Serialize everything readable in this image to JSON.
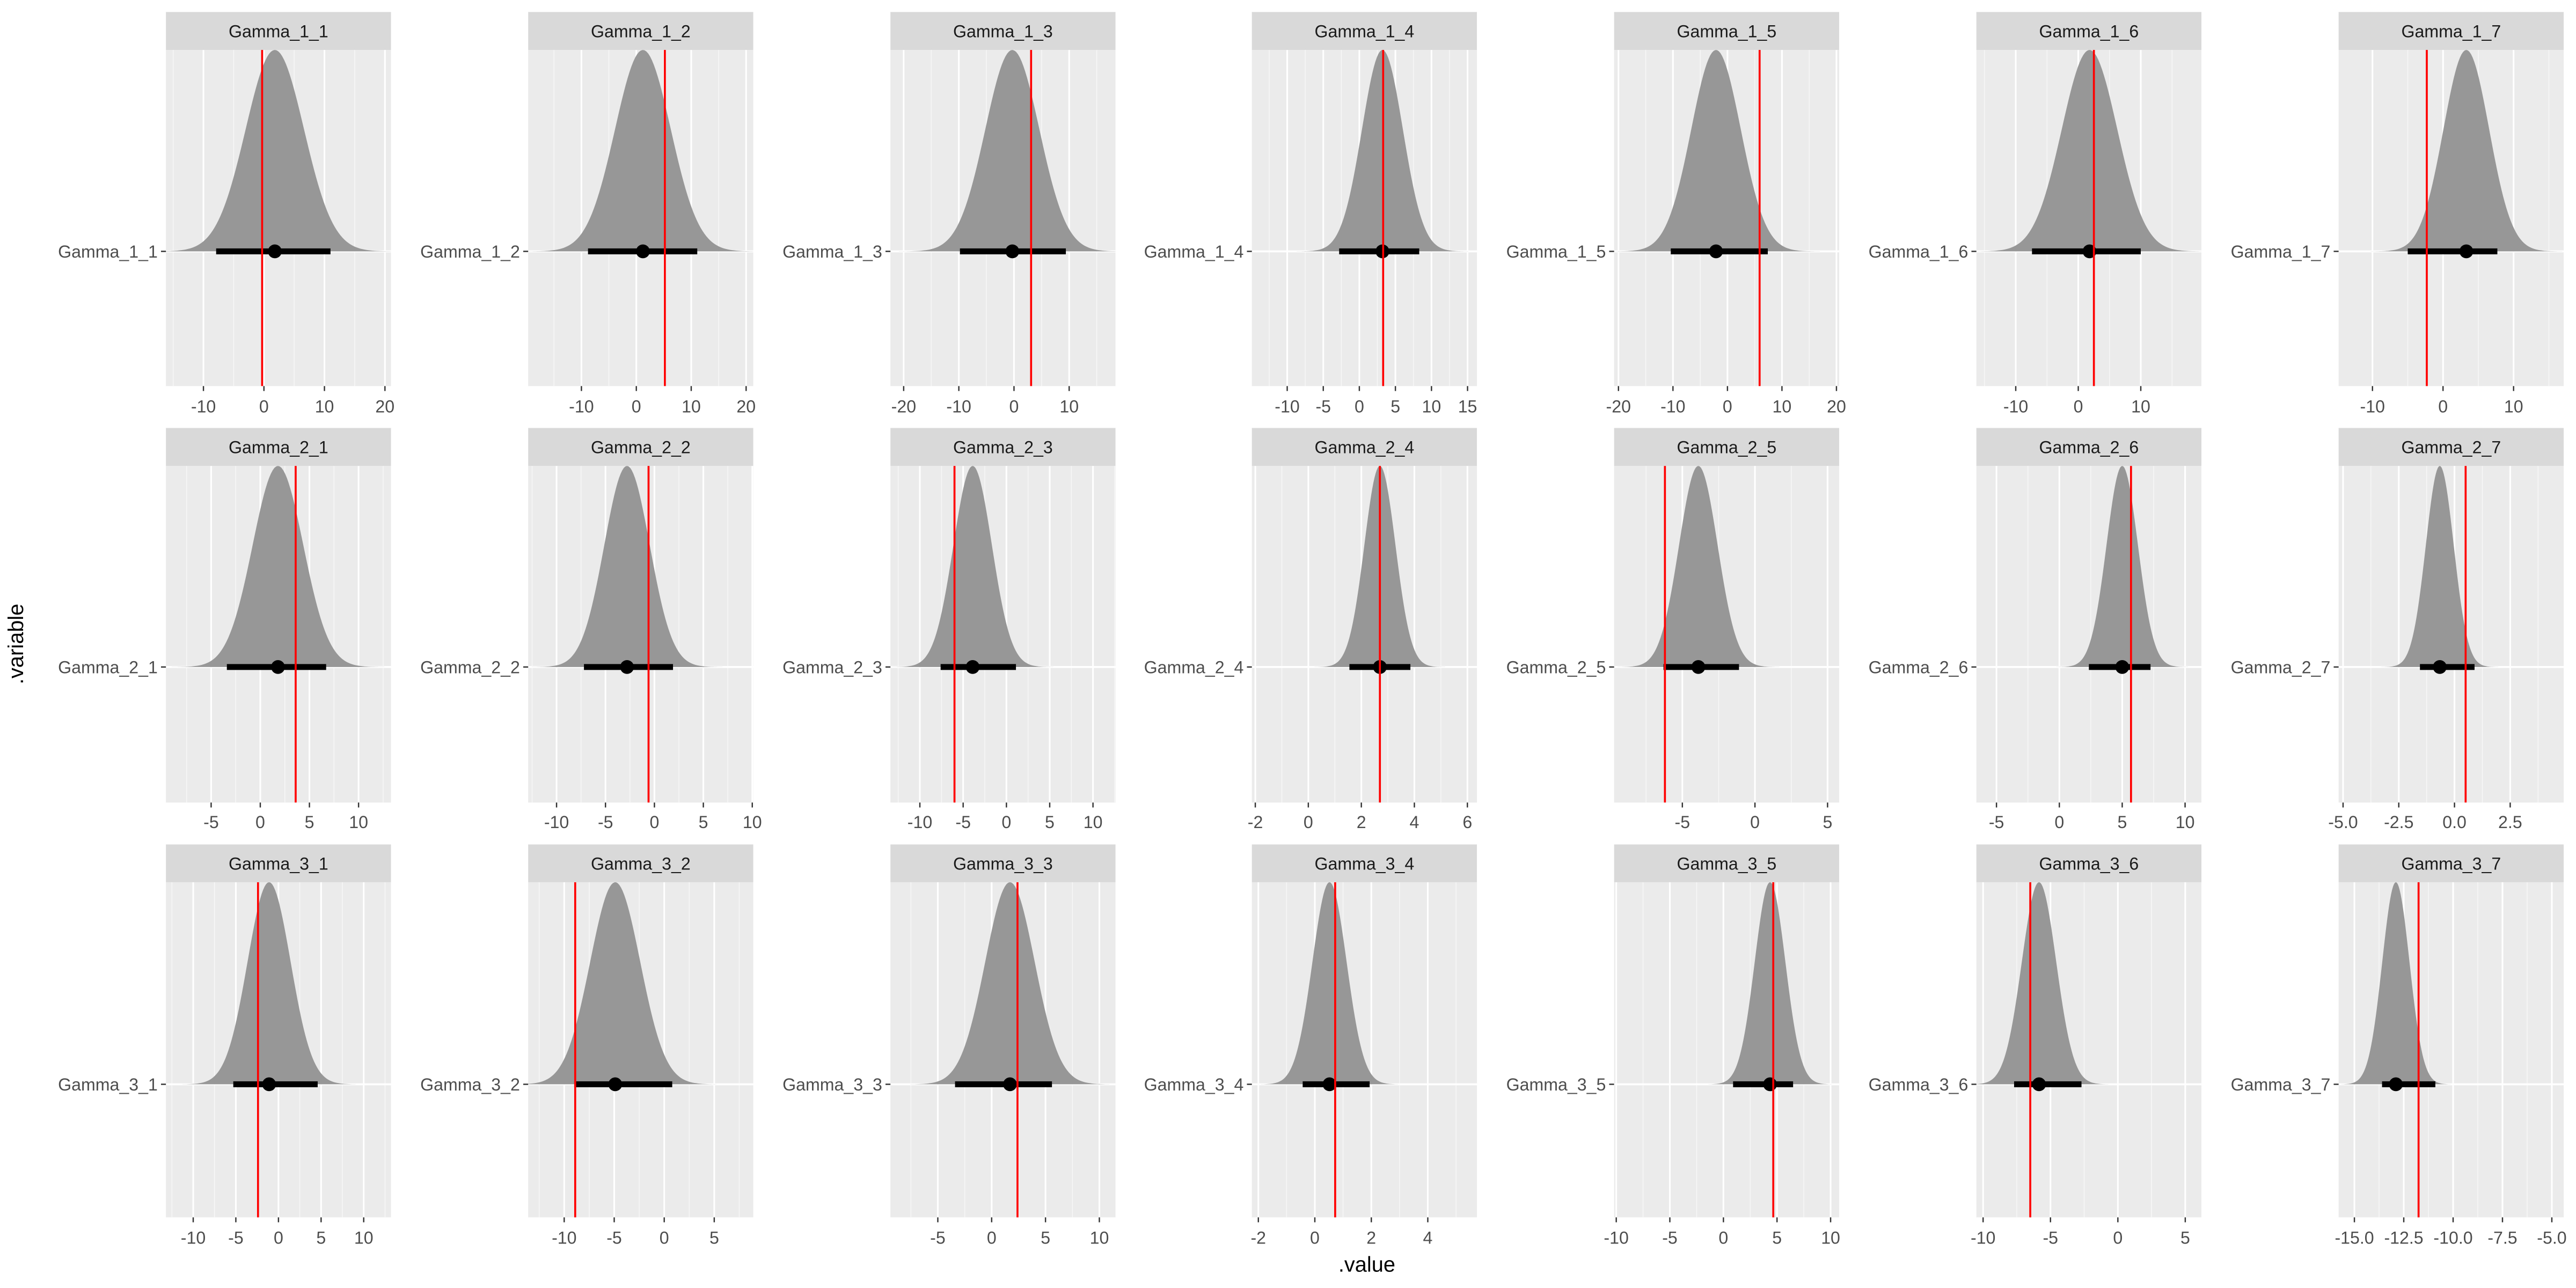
{
  "axes": {
    "xlabel": ".value",
    "ylabel": ".variable"
  },
  "colors": {
    "panel_bg": "#EBEBEB",
    "strip_bg": "#D9D9D9",
    "density": "#979797",
    "grid": "#FFFFFF",
    "truth_line": "#FF0000",
    "interval": "#000000"
  },
  "chart_data": [
    {
      "type": "area",
      "title": "Gamma_1_1",
      "variable": "Gamma_1_1",
      "xlim": [
        -16.2,
        21
      ],
      "xticks": [
        "-10",
        "0",
        "10",
        "20"
      ],
      "xtick_values": [
        -10,
        0,
        10,
        20
      ],
      "median": 1.8,
      "interval": [
        -7.9,
        11
      ],
      "true_value": -0.3
    },
    {
      "type": "area",
      "title": "Gamma_1_2",
      "variable": "Gamma_1_2",
      "xlim": [
        -19.7,
        21.3
      ],
      "xticks": [
        "-10",
        "0",
        "10",
        "20"
      ],
      "xtick_values": [
        -10,
        0,
        10,
        20
      ],
      "median": 1.2,
      "interval": [
        -8.8,
        11.1
      ],
      "true_value": 5.2
    },
    {
      "type": "area",
      "title": "Gamma_1_3",
      "variable": "Gamma_1_3",
      "xlim": [
        -22.4,
        18.4
      ],
      "xticks": [
        "-20",
        "-10",
        "0",
        "10"
      ],
      "xtick_values": [
        -20,
        -10,
        0,
        10
      ],
      "median": -0.3,
      "interval": [
        -9.8,
        9.4
      ],
      "true_value": 3.1
    },
    {
      "type": "area",
      "title": "Gamma_1_4",
      "variable": "Gamma_1_4",
      "xlim": [
        -14.9,
        16.3
      ],
      "xticks": [
        "-10",
        "-5",
        "0",
        "5",
        "10",
        "15"
      ],
      "xtick_values": [
        -10,
        -5,
        0,
        5,
        10,
        15
      ],
      "median": 3.2,
      "interval": [
        -2.8,
        8.3
      ],
      "true_value": 3.3
    },
    {
      "type": "area",
      "title": "Gamma_1_5",
      "variable": "Gamma_1_5",
      "xlim": [
        -20.8,
        20.5
      ],
      "xticks": [
        "-20",
        "-10",
        "0",
        "10",
        "20"
      ],
      "xtick_values": [
        -20,
        -10,
        0,
        10,
        20
      ],
      "median": -2.1,
      "interval": [
        -10.4,
        7.4
      ],
      "true_value": 5.9
    },
    {
      "type": "area",
      "title": "Gamma_1_6",
      "variable": "Gamma_1_6",
      "xlim": [
        -16.3,
        19.7
      ],
      "xticks": [
        "-10",
        "0",
        "10"
      ],
      "xtick_values": [
        -10,
        0,
        10
      ],
      "median": 1.8,
      "interval": [
        -7.4,
        10
      ],
      "true_value": 2.5
    },
    {
      "type": "area",
      "title": "Gamma_1_7",
      "variable": "Gamma_1_7",
      "xlim": [
        -14.8,
        17.1
      ],
      "xticks": [
        "-10",
        "0",
        "10"
      ],
      "xtick_values": [
        -10,
        0,
        10
      ],
      "median": 3.3,
      "interval": [
        -5,
        7.7
      ],
      "true_value": -2.3
    },
    {
      "type": "area",
      "title": "Gamma_2_1",
      "variable": "Gamma_2_1",
      "xlim": [
        -9.6,
        13.3
      ],
      "xticks": [
        "-5",
        "0",
        "5",
        "10"
      ],
      "xtick_values": [
        -5,
        0,
        5,
        10
      ],
      "median": 1.8,
      "interval": [
        -3.4,
        6.7
      ],
      "true_value": 3.6
    },
    {
      "type": "area",
      "title": "Gamma_2_2",
      "variable": "Gamma_2_2",
      "xlim": [
        -12.9,
        10.1
      ],
      "xticks": [
        "-10",
        "-5",
        "0",
        "5",
        "10"
      ],
      "xtick_values": [
        -10,
        -5,
        0,
        5,
        10
      ],
      "median": -2.8,
      "interval": [
        -7.2,
        1.9
      ],
      "true_value": -0.6
    },
    {
      "type": "area",
      "title": "Gamma_2_3",
      "variable": "Gamma_2_3",
      "xlim": [
        -13.4,
        12.6
      ],
      "xticks": [
        "-10",
        "-5",
        "0",
        "5",
        "10"
      ],
      "xtick_values": [
        -10,
        -5,
        0,
        5,
        10
      ],
      "median": -3.9,
      "interval": [
        -7.6,
        1.1
      ],
      "true_value": -6.0
    },
    {
      "type": "area",
      "title": "Gamma_2_4",
      "variable": "Gamma_2_4",
      "xlim": [
        -2.13,
        6.36
      ],
      "xticks": [
        "-2",
        "0",
        "2",
        "4",
        "6"
      ],
      "xtick_values": [
        -2,
        0,
        2,
        4,
        6
      ],
      "median": 2.7,
      "interval": [
        1.55,
        3.85
      ],
      "true_value": 2.7
    },
    {
      "type": "area",
      "title": "Gamma_2_5",
      "variable": "Gamma_2_5",
      "xlim": [
        -9.7,
        5.8
      ],
      "xticks": [
        "-5",
        "0",
        "5"
      ],
      "xtick_values": [
        -5,
        0,
        5
      ],
      "median": -3.9,
      "interval": [
        -6.3,
        -1.1
      ],
      "true_value": -6.2
    },
    {
      "type": "area",
      "title": "Gamma_2_6",
      "variable": "Gamma_2_6",
      "xlim": [
        -6.6,
        11.3
      ],
      "xticks": [
        "-5",
        "0",
        "5",
        "10"
      ],
      "xtick_values": [
        -5,
        0,
        5,
        10
      ],
      "median": 5.0,
      "interval": [
        2.35,
        7.25
      ],
      "true_value": 5.7
    },
    {
      "type": "area",
      "title": "Gamma_2_7",
      "variable": "Gamma_2_7",
      "xlim": [
        -5.2,
        4.9
      ],
      "xticks": [
        "-5.0",
        "-2.5",
        "0.0",
        "2.5"
      ],
      "xtick_values": [
        -5,
        -2.5,
        0,
        2.5
      ],
      "median": -0.66,
      "interval": [
        -1.55,
        0.9
      ],
      "true_value": 0.5
    },
    {
      "type": "area",
      "title": "Gamma_3_1",
      "variable": "Gamma_3_1",
      "xlim": [
        -13.2,
        13.2
      ],
      "xticks": [
        "-10",
        "-5",
        "0",
        "5",
        "10"
      ],
      "xtick_values": [
        -10,
        -5,
        0,
        5,
        10
      ],
      "median": -1.1,
      "interval": [
        -5.3,
        4.6
      ],
      "true_value": -2.4
    },
    {
      "type": "area",
      "title": "Gamma_3_2",
      "variable": "Gamma_3_2",
      "xlim": [
        -13.6,
        8.9
      ],
      "xticks": [
        "-10",
        "-5",
        "0",
        "5"
      ],
      "xtick_values": [
        -10,
        -5,
        0,
        5
      ],
      "median": -4.9,
      "interval": [
        -9.0,
        0.8
      ],
      "true_value": -8.9
    },
    {
      "type": "area",
      "title": "Gamma_3_3",
      "variable": "Gamma_3_3",
      "xlim": [
        -9.4,
        11.5
      ],
      "xticks": [
        "-5",
        "0",
        "5",
        "10"
      ],
      "xtick_values": [
        -5,
        0,
        5,
        10
      ],
      "median": 1.7,
      "interval": [
        -3.4,
        5.6
      ],
      "true_value": 2.4
    },
    {
      "type": "area",
      "title": "Gamma_3_4",
      "variable": "Gamma_3_4",
      "xlim": [
        -2.23,
        5.74
      ],
      "xticks": [
        "-2",
        "0",
        "2",
        "4"
      ],
      "xtick_values": [
        -2,
        0,
        2,
        4
      ],
      "median": 0.52,
      "interval": [
        -0.43,
        1.94
      ],
      "true_value": 0.72
    },
    {
      "type": "area",
      "title": "Gamma_3_5",
      "variable": "Gamma_3_5",
      "xlim": [
        -10.2,
        10.8
      ],
      "xticks": [
        "-10",
        "-5",
        "0",
        "5",
        "10"
      ],
      "xtick_values": [
        -10,
        -5,
        0,
        5,
        10
      ],
      "median": 4.35,
      "interval": [
        0.9,
        6.5
      ],
      "true_value": 4.65
    },
    {
      "type": "area",
      "title": "Gamma_3_6",
      "variable": "Gamma_3_6",
      "xlim": [
        -10.5,
        6.2
      ],
      "xticks": [
        "-10",
        "-5",
        "0",
        "5"
      ],
      "xtick_values": [
        -10,
        -5,
        0,
        5
      ],
      "median": -5.85,
      "interval": [
        -7.7,
        -2.7
      ],
      "true_value": -6.5
    },
    {
      "type": "area",
      "title": "Gamma_3_7",
      "variable": "Gamma_3_7",
      "xlim": [
        -15.8,
        -4.4
      ],
      "xticks": [
        "-15.0",
        "-12.5",
        "-10.0",
        "-7.5",
        "-5.0"
      ],
      "xtick_values": [
        -15,
        -12.5,
        -10,
        -7.5,
        -5
      ],
      "median": -12.9,
      "interval": [
        -13.6,
        -10.9
      ],
      "true_value": -11.75
    }
  ]
}
